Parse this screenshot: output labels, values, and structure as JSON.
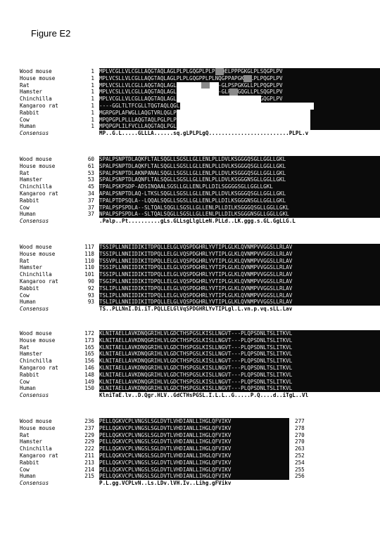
{
  "figure_title": "Figure E2",
  "species": [
    "Wood mouse",
    "House mouse",
    "Rat",
    "Hamster",
    "Chinchilla",
    "Kangaroo rat",
    "Rabbit",
    "Cow",
    "Human"
  ],
  "consensus_label": "Consensus",
  "blocks": [
    {
      "start": [
        "1",
        "1",
        "1",
        "1",
        "1",
        "1",
        "1",
        "1",
        "1"
      ],
      "seqs": [
        "MPLVCGLLVLCGLLAQGTAQLAGLPLPLGQGPLPLPLDQELPPPGKGLPLSQGPLPV",
        "MPLVCSLLVLCGLLAQGTAQLAGLPLPLGQGPPLPLNQGPPAPGKGQLPLPQGPLPV",
        "MPLVCSLLVLCGLLAQGTAQLAGLPLPLGQ--------GLPSPGKGLLPLPQGPLPV",
        "MPLVCSLLVLCGLLAQGTAQLAGLPLPLGQ--------GLPLPGQGLLPLSQGPLPV",
        "MPLVCGLLVLCGLLAQGTAQLAGLPLPLGQ--------------VVPLPLGQGPLPV",
        "----GGLTLTFCGLLTQGTAQLQGLPLPLGQ-----------------------PLPG",
        "MGRPGPLAFWGLLAQGTVRLQGLPLPLGQ------------------------PLPV",
        "MPQPGPLPLLLAQGTAQLPGLPLPLGQ--------------------------PLPV",
        "MPQPGPLILFVCLLAQGTAQLPGLPLPLGQ-----------------------PLPV"
      ],
      "end": [
        "",
        "",
        "",
        "",
        "",
        "",
        "",
        "",
        ""
      ],
      "consensus": "MP..G.L.....GLLLA......sq.gLPLPLgQ.........................PLPL.v"
    },
    {
      "start": [
        "60",
        "61",
        "53",
        "53",
        "45",
        "34",
        "37",
        "37",
        "37"
      ],
      "seqs": [
        "SPALPSNPTDLAQKFLTALSQGLLSGSLLGLLENLPLLDVLKSGGGQSGLLGGLLGKL",
        "SPALPSNPTDLAQKFLTALSQGLLSGSLLGLLENLPLLDVLKSGGGQSGLLGGLLGKL",
        "SPALPSNPTDLAKNPANALSQGLLSGSLLGLLENLPLLDVLKSGGGQSGLLGGLLGKL",
        "SPALPSNPTDLAQNFLTALSQGLLSGSLLGLLENLPLLDVLKSGGGNSGLLGGLLGKL",
        "TPALPSKPSDP-ADSINQAALSGSLLGLLENLPLLDILSGGGGSGLLGGLLGKL",
        "APALPSNPTDLAQ-LTKSLSQGLLSGSLLGLLENLPLLDVLKSGGGQSGLLGGLLGKL",
        "TPALPTDPSQLA--LQQALSQGLLSGSLLGLLENLPLLDILKSGGGNSGLLGGLLGKL",
        "TPALPSPSPDLA--SLTQALSQGLLSGSLLGLLENLPLLDILKSGGGQSGLLGGLLGKL",
        "NPALPSPSPDLA--SLTQALSQGLLSGSLLGLLENLPLLDILKSGGGNSGLLGGLLGKL"
      ],
      "end": [
        "",
        "",
        "",
        "",
        "",
        "",
        "",
        "",
        ""
      ],
      "consensus": ".Palp..Pt..........gLs.GLLsgLlgLLeN.PLLd..LK.ggg.s.GL.GgLLG.L"
    },
    {
      "start": [
        "117",
        "118",
        "110",
        "110",
        "101",
        "90",
        "92",
        "93",
        "93"
      ],
      "seqs": [
        "TSSIPLLNNIIDIKITDPQLLELGLVQSPDGHRLYVTIPLGLKLQVNMPVVGGSLLRLAV",
        "TSSIPLLNNIIDIKITDPQLLELGLVQSPDGHRLYVTIPLGLKLQVNMPVVGGSLLRLAV",
        "TSSVPLLNNIIDIKITDPQLLELGLVQSPDGHRLYVTIPLGLKLQVNMPVVGGSLLRLAV",
        "TSSIPLLNNIIDIKITDPQLLELGLVQSPDGHRLYVTIPLGLKLQVNMPVVGGSLLRLAV",
        "TSSIPLLNNIIDIKITDPQLLELGLVQSPDGHRLYVTIPLGLKLQVNMPVVGGSLLRLAV",
        "TSGIPLLNNIIDIKITDPQLLELGLVQSPDGHRLYVTIPLGLKLQVNMPVVGGSLLRLAV",
        "TSLIPLLNNIIDIKITDPQLLELGLVQSPDGHRLYVTIPLGLKLQVNMPVVGGSLLRLAV",
        "TSLIPLLNNIIDIKITDPQLLELGLVQSPDGHRLYVTIPLGLKLQVNMPVVGGSLLRLAV",
        "TSLIPLLNNIIDIKITDPQLLELGLVQSPDGHRLYVTIPLGLKLQVNMPVVGGSLLRLAV"
      ],
      "end": [
        "",
        "",
        "",
        "",
        "",
        "",
        "",
        "",
        ""
      ],
      "consensus": "TS..PLLNnI.Di.iT.PQLLELGlVqSPDGHRLYvTIPLgl.L.vn.p.vq.sLL.Lav"
    },
    {
      "start": [
        "172",
        "173",
        "165",
        "165",
        "156",
        "146",
        "148",
        "149",
        "150"
      ],
      "seqs": [
        "KLNITAELLAVKDNQGRIHLVLGDCTHSPGSLKISLLNGVT---PLQPSDNLTSLITKVL",
        "KLNITAELLAVKDNQGRIHLVLGDCTHSPGSLKISLLNGVT---PLQPSDNLTSLITKVL",
        "KLNITAELLAVKDNQGRIHLVLGDCTHSPGSLKISLLNGVT---PLQPSDNLTSLITKVL",
        "KLNITAELLAVKDNQGRIHLVLGDCTHSPGSLKISLLNGVT---PLQPSDNLTSLITKVL",
        "KLNITAELLAVKDNQGRIHLVLGDCTHSPGSLKISLLNGVT---PLQPSDNLTSLITKVL",
        "KLNITAELLAVKDNQGRIHLVLGDCTHSPGSLKISLLNGVT---PLQPSDNLTSLITKVL",
        "KLNITAELLAVKDNQGRIHLVLGDCTHSPGSLKISLLNGVT---PLQPSDNLTSLITKVL",
        "KLNITAELLAVKDNQGRIHLVLGDCTHSPGSLKISLLNGVT---PLQPSDNLTSLITKVL",
        "KLNITAELLAVKDNQGRIHLVLGDCTHSPGSLKISLLNGVT---PLQPSDNLTSLITKVL"
      ],
      "end": [
        "",
        "",
        "",
        "",
        "",
        "",
        "",
        "",
        ""
      ],
      "consensus": "KlniTaE.lv..D.Qgr.HLV..GdCTHsPGSL.I.L.L..G.....P.Q....d..iTgL..Vl"
    },
    {
      "start": [
        "236",
        "237",
        "229",
        "229",
        "222",
        "211",
        "213",
        "214",
        "215"
      ],
      "seqs": [
        "PELLQGKVCPLVNGSLSGLDVTLVHDIANLLIHGLQFVIKV",
        "PELLQGKVCPLVNGSLSGLDVTLVHDIANLLIHGLQFVIKV",
        "PELLQGKVCPLVNGSLSGLDVTLVHDIANLLIHGLQFVIKV",
        "PELLQGKVCPLVNGSLSGLDVTLVHDIANLLIHGLQFVIKV",
        "PELLQGKVCPLVNGSLSGLDVTLVHDIANLLIHGLQFVIKV",
        "PELLQGKVCPLVNGSLSGLDVTLVHDIANLLIHGLQFVIKV",
        "PELLQGKVCPLVNGSLSGLDVTLVHDIANLLIHGLQFVIKV",
        "PELLQGKVCPLVNGSLSGLDVTLVHDIANLLIHGLQFVIKV",
        "PELLQGKVCPLVNGSLSGLDVTLVHDIANLLIHGLQFVIKV"
      ],
      "end": [
        "277",
        "278",
        "270",
        "270",
        "263",
        "252",
        "254",
        "255",
        "256"
      ],
      "consensus": "P.L.gg.VCPLvN..Ls.LDv.lVH.Iv..Lihg.gFVikv"
    }
  ]
}
